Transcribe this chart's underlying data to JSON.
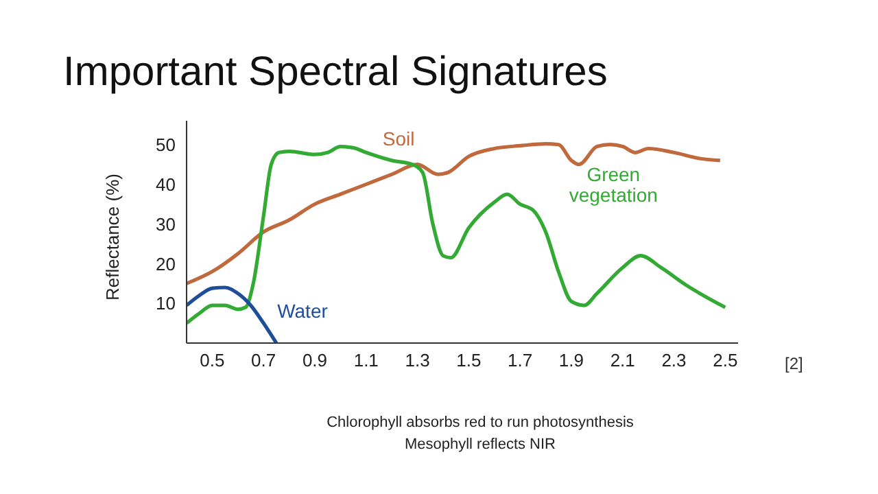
{
  "chart_data": {
    "type": "line",
    "title": "Important Spectral Signatures",
    "ylabel": "Reflectance (%)",
    "xlim": [
      0.4,
      2.55
    ],
    "xticks": [
      0.5,
      0.7,
      0.9,
      1.1,
      1.3,
      1.5,
      1.7,
      1.9,
      2.1,
      2.3,
      2.5
    ],
    "ylim": [
      0,
      56
    ],
    "yticks": [
      10,
      20,
      30,
      40,
      50
    ],
    "series": [
      {
        "name": "Soil",
        "color": "#c0693d",
        "x": [
          0.4,
          0.5,
          0.6,
          0.7,
          0.8,
          0.9,
          1.0,
          1.1,
          1.2,
          1.3,
          1.38,
          1.42,
          1.5,
          1.6,
          1.7,
          1.8,
          1.85,
          1.9,
          1.93,
          2.0,
          2.05,
          2.1,
          2.15,
          2.2,
          2.3,
          2.4,
          2.48
        ],
        "values": [
          15,
          18,
          22.5,
          28,
          31,
          35,
          37.5,
          40,
          42.5,
          45,
          42.5,
          43,
          47,
          49,
          49.7,
          50.2,
          50,
          46,
          45,
          49.5,
          50,
          49.5,
          48,
          49,
          48,
          46.5,
          46
        ]
      },
      {
        "name": "Green vegetation",
        "color": "#33aa33",
        "x": [
          0.4,
          0.45,
          0.5,
          0.55,
          0.6,
          0.63,
          0.66,
          0.7,
          0.73,
          0.76,
          0.8,
          0.9,
          0.95,
          1.0,
          1.05,
          1.1,
          1.2,
          1.28,
          1.32,
          1.36,
          1.4,
          1.43,
          1.5,
          1.6,
          1.65,
          1.7,
          1.75,
          1.8,
          1.85,
          1.9,
          1.95,
          2.0,
          2.1,
          2.17,
          2.25,
          2.35,
          2.5
        ],
        "values": [
          5,
          7.5,
          9.5,
          9.5,
          8.5,
          9,
          15,
          32,
          45,
          48,
          48.3,
          47.5,
          48,
          49.5,
          49.2,
          48,
          46,
          45,
          43,
          30,
          22,
          21.5,
          29,
          35.5,
          37.5,
          35,
          33.5,
          28,
          18,
          10.5,
          9.5,
          12.5,
          19,
          22,
          19,
          14.5,
          9
        ]
      },
      {
        "name": "Water",
        "color": "#1f4e99",
        "x": [
          0.4,
          0.45,
          0.5,
          0.55,
          0.6,
          0.65,
          0.7,
          0.75
        ],
        "values": [
          9.5,
          12,
          13.8,
          14,
          12.5,
          9.5,
          5,
          0
        ]
      }
    ],
    "annotations": [
      "[2]",
      "Chlorophyll absorbs red to run photosynthesis\nMesophyll reflects NIR"
    ]
  }
}
